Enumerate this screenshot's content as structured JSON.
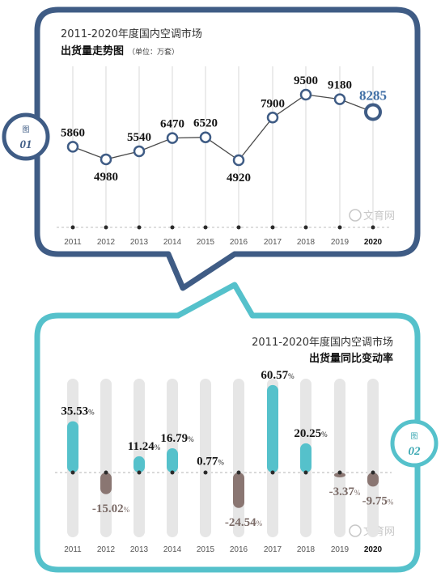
{
  "panel1": {
    "badge_top": "图",
    "badge_num": "01",
    "title_line1": "2011-2020年度国内空调市场",
    "title_line2": "出货量走势图",
    "unit": "（单位：万套）",
    "watermark": "文育网"
  },
  "panel2": {
    "badge_top": "图",
    "badge_num": "02",
    "title_line1": "2011-2020年度国内空调市场",
    "title_line2": "出货量同比变动率",
    "watermark": "文育网"
  },
  "colors": {
    "navy": "#3f5c85",
    "teal": "#55c1cb",
    "brown": "#8a7672",
    "track": "#e6e6e6",
    "highlight_value": "#3f6ea5"
  },
  "chart_data": [
    {
      "type": "line",
      "title": "2011-2020年度国内空调市场 出货量走势图",
      "unit": "万套",
      "categories": [
        "2011",
        "2012",
        "2013",
        "2014",
        "2015",
        "2016",
        "2017",
        "2018",
        "2019",
        "2020"
      ],
      "values": [
        5860,
        4980,
        5540,
        6470,
        6520,
        4920,
        7900,
        9500,
        9180,
        8285
      ],
      "highlight": "2020"
    },
    {
      "type": "bar",
      "title": "2011-2020年度国内空调市场 出货量同比变动率",
      "unit": "%",
      "categories": [
        "2011",
        "2012",
        "2013",
        "2014",
        "2015",
        "2016",
        "2017",
        "2018",
        "2019",
        "2020"
      ],
      "values": [
        35.53,
        -15.02,
        11.24,
        16.79,
        0.77,
        -24.54,
        60.57,
        20.25,
        -3.37,
        -9.75
      ],
      "labels": [
        "35.53",
        "-15.02",
        "11.24",
        "16.79",
        "0.77",
        "-24.54",
        "60.57",
        "20.25",
        "-3.37",
        "-9.75"
      ],
      "highlight": "2020"
    }
  ]
}
